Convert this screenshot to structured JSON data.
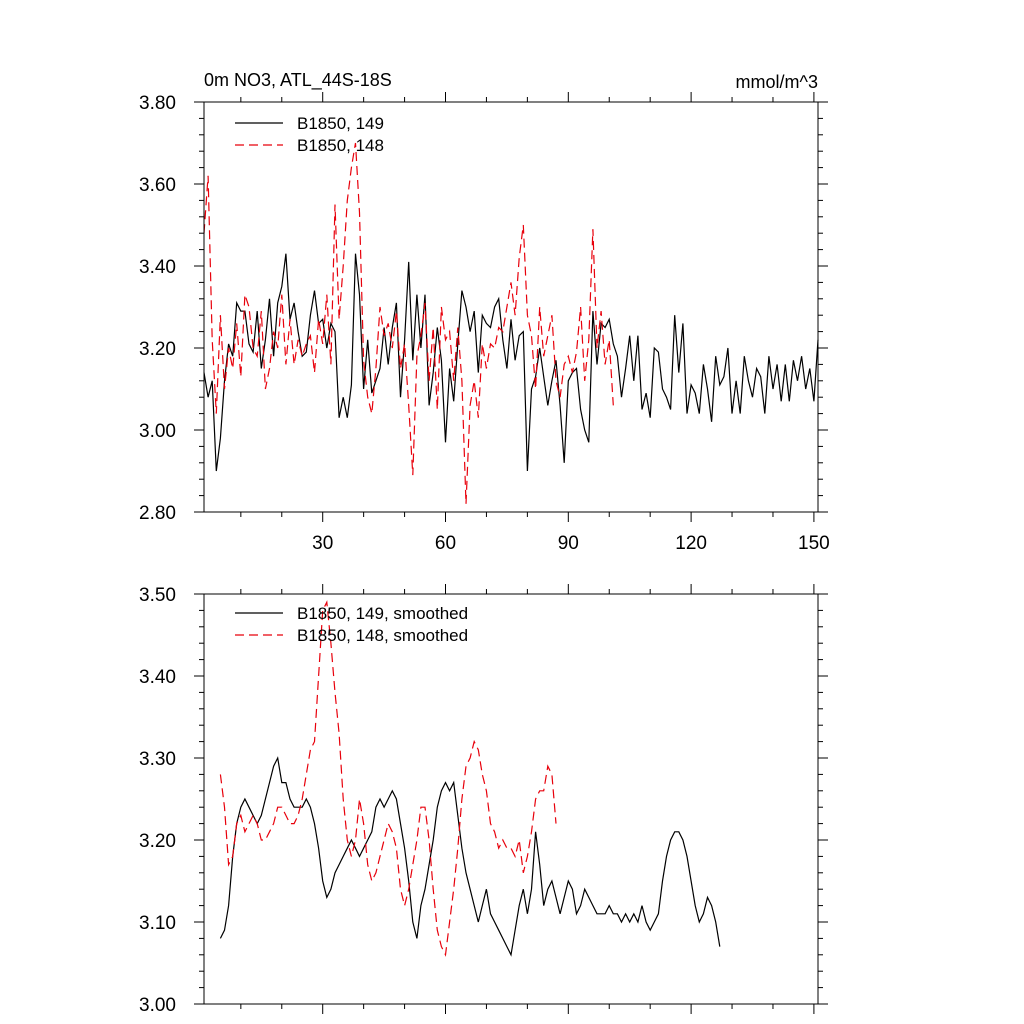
{
  "colors": {
    "series_149": "#000000",
    "series_148": "#e8000b"
  },
  "chart_data": [
    {
      "type": "line",
      "title": "0m NO3, ATL_44S-18S",
      "units": "mmol/m^3",
      "xlim": [
        1,
        151
      ],
      "ylim": [
        2.8,
        3.8
      ],
      "x_ticks": [
        30,
        60,
        90,
        120,
        150
      ],
      "x_tick_labels": [
        "30",
        "60",
        "90",
        "120",
        "150"
      ],
      "y_ticks": [
        2.8,
        3.0,
        3.2,
        3.4,
        3.6,
        3.8
      ],
      "y_tick_labels": [
        "2.80",
        "3.00",
        "3.20",
        "3.40",
        "3.60",
        "3.80"
      ],
      "grid": false,
      "legend_position": "top-left",
      "x_start": 1,
      "series": [
        {
          "name": "B1850, 149",
          "style": "solid",
          "color": "#000000",
          "values": [
            3.14,
            3.08,
            3.12,
            2.9,
            2.98,
            3.12,
            3.21,
            3.18,
            3.31,
            3.29,
            3.29,
            3.21,
            3.19,
            3.29,
            3.15,
            3.22,
            3.32,
            3.18,
            3.31,
            3.35,
            3.43,
            3.27,
            3.31,
            3.24,
            3.18,
            3.19,
            3.28,
            3.34,
            3.26,
            3.27,
            3.2,
            3.26,
            3.24,
            3.03,
            3.08,
            3.03,
            3.11,
            3.43,
            3.33,
            3.1,
            3.22,
            3.09,
            3.12,
            3.15,
            3.25,
            3.16,
            3.25,
            3.31,
            3.08,
            3.22,
            3.41,
            3.17,
            3.33,
            3.2,
            3.33,
            3.06,
            3.14,
            3.25,
            3.17,
            2.97,
            3.15,
            3.07,
            3.21,
            3.34,
            3.3,
            3.24,
            3.29,
            3.14,
            3.28,
            3.26,
            3.25,
            3.3,
            3.32,
            3.22,
            3.15,
            3.27,
            3.17,
            3.23,
            3.24,
            2.9,
            3.1,
            3.13,
            3.2,
            3.13,
            3.06,
            3.12,
            3.17,
            3.06,
            2.92,
            3.12,
            3.14,
            3.15,
            3.05,
            3.0,
            2.97,
            3.29,
            3.16,
            3.26,
            3.25,
            3.27,
            3.21,
            3.18,
            3.08,
            3.15,
            3.23,
            3.12,
            3.23,
            3.05,
            3.09,
            3.03,
            3.2,
            3.19,
            3.1,
            3.08,
            3.05,
            3.28,
            3.14,
            3.26,
            3.04,
            3.11,
            3.09,
            3.04,
            3.16,
            3.1,
            3.02,
            3.18,
            3.11,
            3.13,
            3.2,
            3.04,
            3.12,
            3.04,
            3.18,
            3.12,
            3.08,
            3.15,
            3.13,
            3.04,
            3.18,
            3.1,
            3.16,
            3.07,
            3.16,
            3.07,
            3.17,
            3.12,
            3.18,
            3.1,
            3.15,
            3.07,
            3.22
          ]
        },
        {
          "name": "B1850, 148",
          "style": "dashed",
          "color": "#e8000b",
          "values": [
            3.48,
            3.62,
            3.22,
            3.04,
            3.28,
            3.1,
            3.2,
            3.15,
            3.26,
            3.13,
            3.33,
            3.3,
            3.2,
            3.18,
            3.29,
            3.1,
            3.15,
            3.24,
            3.2,
            3.33,
            3.16,
            3.27,
            3.16,
            3.22,
            3.18,
            3.21,
            3.23,
            3.14,
            3.27,
            3.21,
            3.33,
            3.16,
            3.55,
            3.27,
            3.4,
            3.56,
            3.64,
            3.7,
            3.53,
            3.17,
            3.08,
            3.04,
            3.15,
            3.3,
            3.23,
            3.26,
            3.2,
            3.29,
            3.15,
            3.21,
            3.06,
            2.89,
            3.18,
            3.23,
            3.31,
            3.12,
            3.25,
            3.05,
            3.3,
            3.22,
            3.24,
            3.12,
            3.25,
            3.12,
            2.82,
            3.06,
            3.12,
            3.03,
            3.21,
            3.15,
            3.21,
            3.2,
            3.25,
            3.24,
            3.3,
            3.36,
            3.28,
            3.42,
            3.5,
            3.28,
            3.23,
            3.1,
            3.3,
            3.18,
            3.23,
            3.28,
            3.12,
            3.08,
            3.16,
            3.18,
            3.14,
            3.19,
            3.3,
            3.12,
            3.22,
            3.49,
            3.2,
            3.29,
            3.16,
            3.22,
            3.06
          ]
        }
      ]
    },
    {
      "type": "line",
      "title": "",
      "xlim": [
        1,
        151
      ],
      "ylim": [
        3.0,
        3.5
      ],
      "x_ticks": [
        30,
        60,
        90,
        120,
        150
      ],
      "x_tick_labels": [],
      "y_ticks": [
        3.0,
        3.1,
        3.2,
        3.3,
        3.4,
        3.5
      ],
      "y_tick_labels": [
        "3.00",
        "3.10",
        "3.20",
        "3.30",
        "3.40",
        "3.50"
      ],
      "grid": false,
      "legend_position": "top-left",
      "x_start": 5,
      "series": [
        {
          "name": "B1850, 149, smoothed",
          "style": "solid",
          "color": "#000000",
          "values": [
            3.08,
            3.09,
            3.12,
            3.18,
            3.22,
            3.24,
            3.25,
            3.24,
            3.23,
            3.22,
            3.23,
            3.25,
            3.27,
            3.29,
            3.3,
            3.27,
            3.27,
            3.25,
            3.24,
            3.24,
            3.24,
            3.25,
            3.24,
            3.22,
            3.19,
            3.15,
            3.13,
            3.14,
            3.16,
            3.17,
            3.18,
            3.19,
            3.2,
            3.19,
            3.18,
            3.19,
            3.2,
            3.21,
            3.24,
            3.25,
            3.24,
            3.25,
            3.26,
            3.25,
            3.22,
            3.19,
            3.15,
            3.1,
            3.08,
            3.12,
            3.14,
            3.17,
            3.2,
            3.24,
            3.26,
            3.27,
            3.26,
            3.27,
            3.23,
            3.19,
            3.16,
            3.14,
            3.12,
            3.1,
            3.12,
            3.14,
            3.11,
            3.1,
            3.09,
            3.08,
            3.07,
            3.06,
            3.09,
            3.12,
            3.14,
            3.11,
            3.14,
            3.21,
            3.17,
            3.12,
            3.14,
            3.15,
            3.13,
            3.11,
            3.13,
            3.15,
            3.14,
            3.11,
            3.12,
            3.14,
            3.13,
            3.12,
            3.11,
            3.11,
            3.11,
            3.12,
            3.11,
            3.11,
            3.1,
            3.11,
            3.1,
            3.11,
            3.1,
            3.12,
            3.1,
            3.09,
            3.1,
            3.11,
            3.15,
            3.18,
            3.2,
            3.21,
            3.21,
            3.2,
            3.18,
            3.15,
            3.12,
            3.1,
            3.11,
            3.13,
            3.12,
            3.1,
            3.07
          ]
        },
        {
          "name": "B1850, 148, smoothed",
          "style": "dashed",
          "color": "#e8000b",
          "values": [
            3.28,
            3.24,
            3.17,
            3.18,
            3.22,
            3.23,
            3.21,
            3.22,
            3.23,
            3.22,
            3.2,
            3.2,
            3.21,
            3.22,
            3.24,
            3.24,
            3.23,
            3.22,
            3.22,
            3.23,
            3.25,
            3.28,
            3.31,
            3.32,
            3.4,
            3.48,
            3.49,
            3.44,
            3.38,
            3.33,
            3.25,
            3.2,
            3.18,
            3.2,
            3.25,
            3.22,
            3.17,
            3.15,
            3.16,
            3.18,
            3.2,
            3.22,
            3.21,
            3.19,
            3.14,
            3.12,
            3.14,
            3.17,
            3.2,
            3.24,
            3.24,
            3.2,
            3.14,
            3.09,
            3.07,
            3.06,
            3.1,
            3.14,
            3.19,
            3.25,
            3.29,
            3.3,
            3.32,
            3.31,
            3.28,
            3.26,
            3.22,
            3.21,
            3.19,
            3.2,
            3.19,
            3.19,
            3.18,
            3.2,
            3.16,
            3.18,
            3.21,
            3.25,
            3.26,
            3.26,
            3.29,
            3.28,
            3.22
          ]
        }
      ]
    }
  ]
}
